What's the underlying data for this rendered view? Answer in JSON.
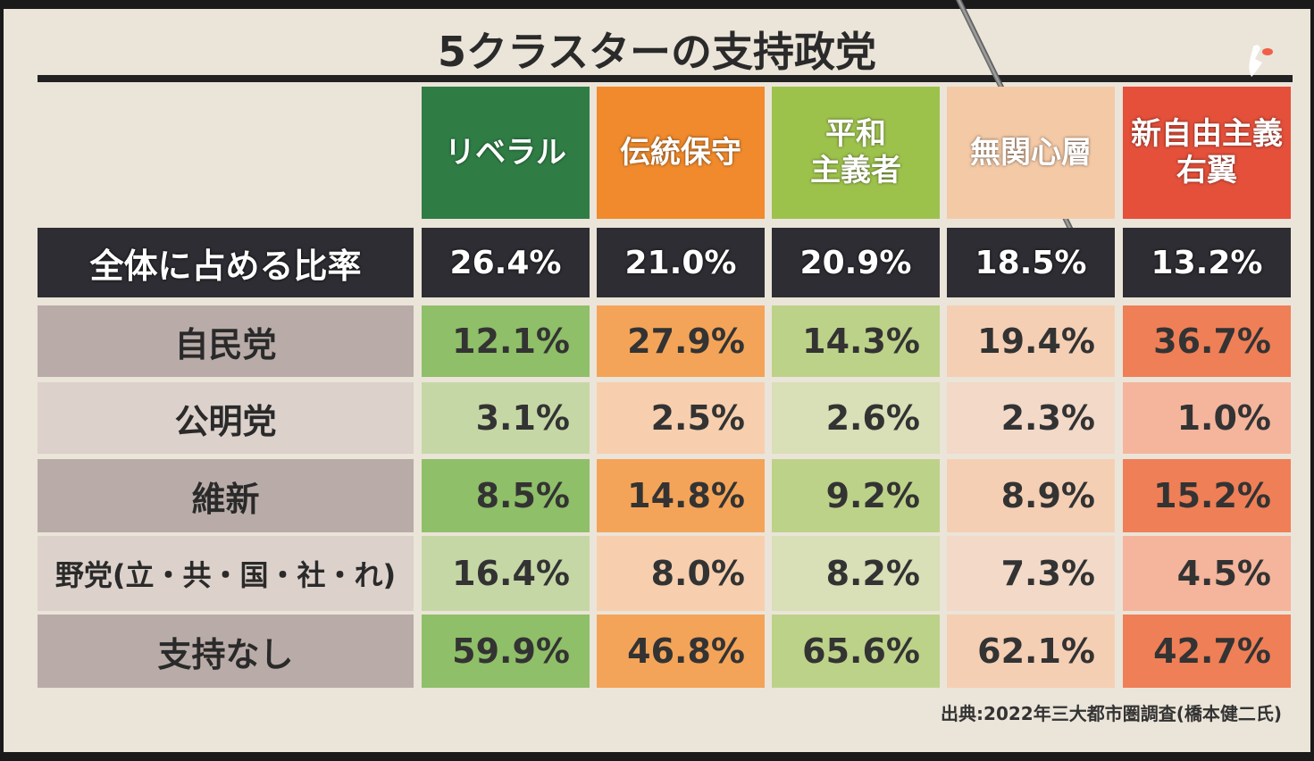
{
  "chart_data": {
    "type": "table",
    "title": "5クラスターの支持政党",
    "columns": [
      {
        "name": "リベラル",
        "header_color": "#2f7d45",
        "strong": "#8fbf68",
        "light": "#c6d7a6"
      },
      {
        "name": "伝統保守",
        "header_color": "#f08a2c",
        "strong": "#f4a458",
        "light": "#f7cfae"
      },
      {
        "name": "平和\n主義者",
        "header_color": "#9dc24c",
        "strong": "#bdd289",
        "light": "#d9dfb6"
      },
      {
        "name": "無関心層",
        "header_color": "#f4c9a6",
        "strong": "#f5cfb4",
        "light": "#f2d9c8"
      },
      {
        "name": "新自由主義\n右翼",
        "header_color": "#e4503a",
        "strong": "#ef7f57",
        "light": "#f4b59c"
      }
    ],
    "ratio_row": {
      "label": "全体に占める比率",
      "values": [
        "26.4%",
        "21.0%",
        "20.9%",
        "18.5%",
        "13.2%"
      ]
    },
    "rows": [
      {
        "label": "自民党",
        "values": [
          "12.1%",
          "27.9%",
          "14.3%",
          "19.4%",
          "36.7%"
        ]
      },
      {
        "label": "公明党",
        "values": [
          "3.1%",
          "2.5%",
          "2.6%",
          "2.3%",
          "1.0%"
        ]
      },
      {
        "label": "維新",
        "values": [
          "8.5%",
          "14.8%",
          "9.2%",
          "8.9%",
          "15.2%"
        ]
      },
      {
        "label": "野党(立・共・国・社・れ)",
        "values": [
          "16.4%",
          "8.0%",
          "8.2%",
          "7.3%",
          "4.5%"
        ]
      },
      {
        "label": "支持なし",
        "values": [
          "59.9%",
          "46.8%",
          "65.6%",
          "62.1%",
          "42.7%"
        ]
      }
    ],
    "source": "出典:2022年三大都市圏調査(橋本健二氏)"
  }
}
